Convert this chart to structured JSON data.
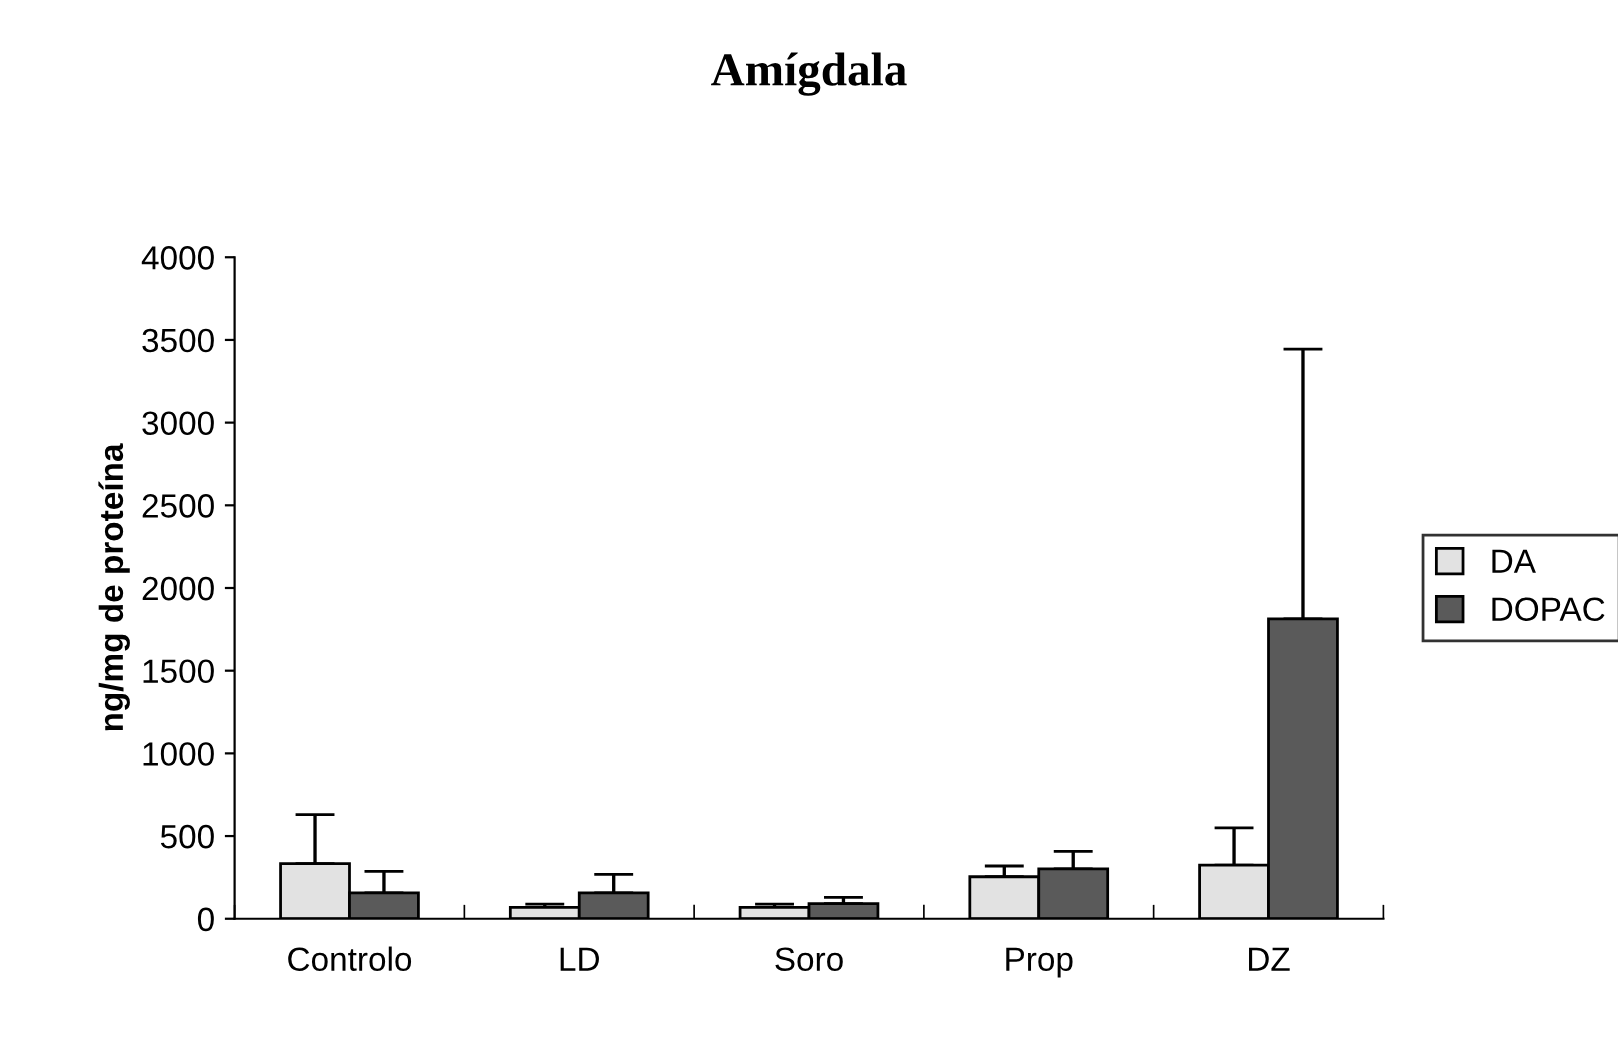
{
  "chart_data": {
    "type": "bar",
    "title": "Amígdala",
    "ylabel": "ng/mg de proteína",
    "categories": [
      "Controlo",
      "LD",
      "Soro",
      "Prop",
      "DZ"
    ],
    "series": [
      {
        "name": "DA",
        "color": "#e2e2e2",
        "values": [
          333,
          69,
          69,
          254,
          324
        ],
        "errors": [
          [
            333,
            629
          ],
          [
            69,
            88
          ],
          [
            69,
            88
          ],
          [
            254,
            319
          ],
          [
            324,
            550
          ]
        ]
      },
      {
        "name": "DOPAC",
        "color": "#5a5a5a",
        "values": [
          157,
          157,
          92,
          301,
          1813
        ],
        "errors": [
          [
            157,
            287
          ],
          [
            157,
            268
          ],
          [
            92,
            129
          ],
          [
            301,
            407
          ],
          [
            1813,
            3445
          ]
        ]
      }
    ],
    "ylim": [
      0,
      4000
    ],
    "yticks": [
      0,
      500,
      1000,
      1500,
      2000,
      2500,
      3000,
      3500,
      4000
    ],
    "grid": false,
    "legend": "right"
  }
}
